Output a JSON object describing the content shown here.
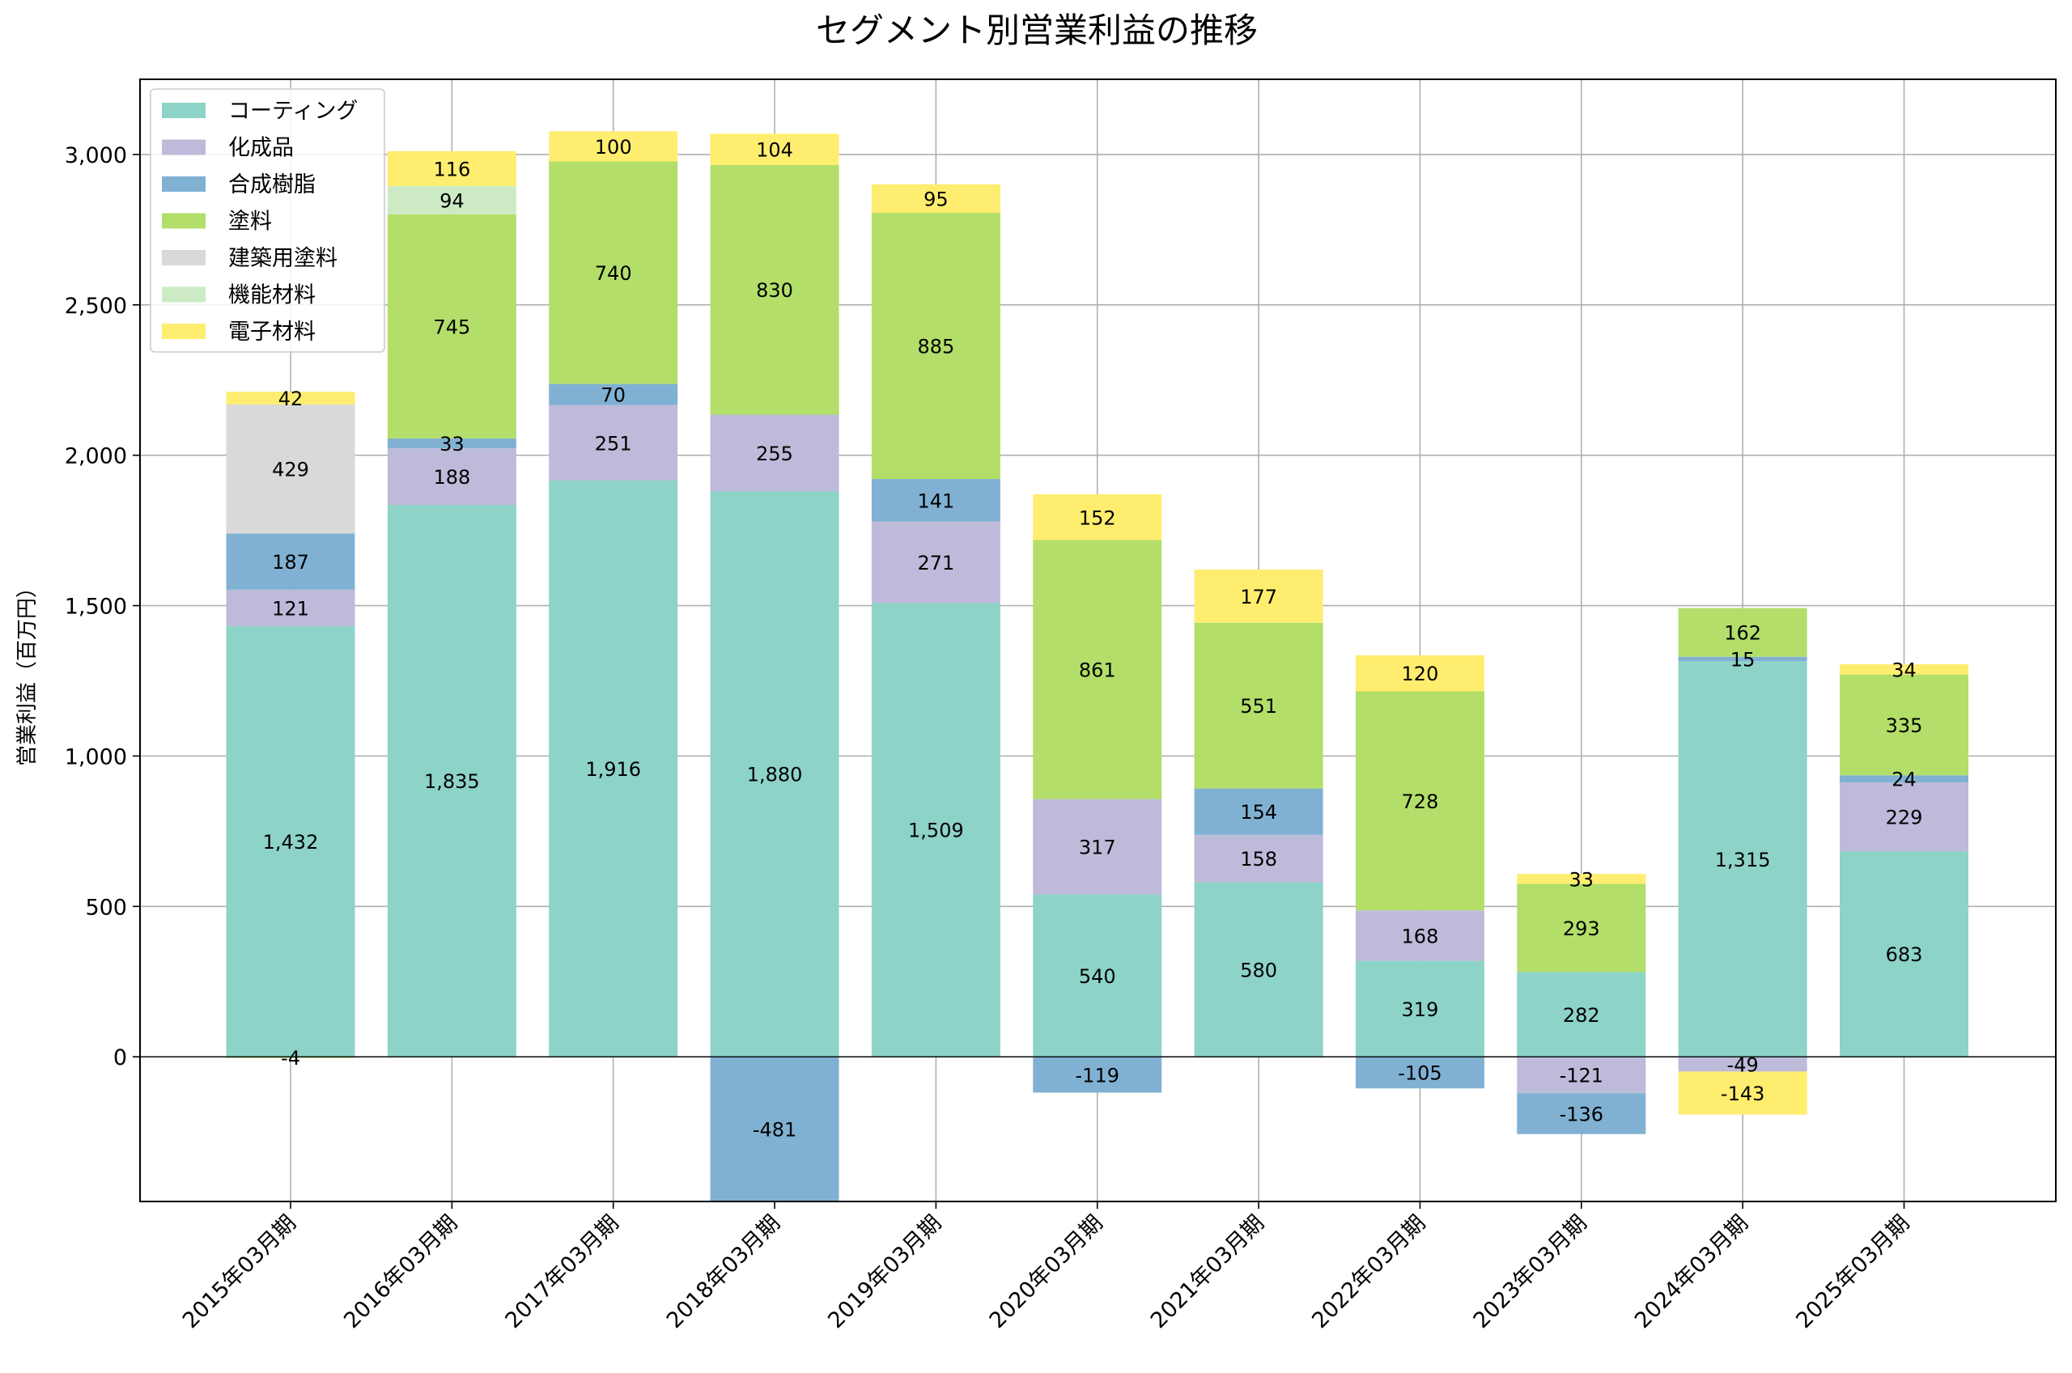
{
  "chart_data": {
    "type": "bar",
    "stacked": true,
    "title": "セグメント別営業利益の推移",
    "xlabel": "",
    "ylabel": "営業利益（百万円）",
    "ylim": [
      -481,
      3250
    ],
    "yticks": [
      0,
      500,
      1000,
      1500,
      2000,
      2500,
      3000
    ],
    "ytick_labels": [
      "0",
      "500",
      "1,000",
      "1,500",
      "2,000",
      "2,500",
      "3,000"
    ],
    "grid": true,
    "legend_position": "top-left",
    "categories": [
      "2015年03月期",
      "2016年03月期",
      "2017年03月期",
      "2018年03月期",
      "2019年03月期",
      "2020年03月期",
      "2021年03月期",
      "2022年03月期",
      "2023年03月期",
      "2024年03月期",
      "2025年03月期"
    ],
    "series": [
      {
        "name": "コーティング",
        "color": "#8dd3c7",
        "values": [
          1432,
          1835,
          1916,
          1880,
          1509,
          540,
          580,
          319,
          282,
          1315,
          683
        ]
      },
      {
        "name": "化成品",
        "color": "#bebada",
        "values": [
          121,
          188,
          251,
          255,
          271,
          317,
          158,
          168,
          -121,
          -49,
          229
        ]
      },
      {
        "name": "合成樹脂",
        "color": "#80b1d3",
        "values": [
          187,
          33,
          70,
          -481,
          141,
          -119,
          154,
          -105,
          -136,
          15,
          24
        ]
      },
      {
        "name": "塗料",
        "color": "#b3de69",
        "values": [
          -4,
          745,
          740,
          830,
          885,
          861,
          551,
          728,
          293,
          162,
          335
        ]
      },
      {
        "name": "建築用塗料",
        "color": "#d9d9d9",
        "values": [
          429,
          null,
          null,
          null,
          null,
          null,
          null,
          null,
          null,
          null,
          null
        ]
      },
      {
        "name": "機能材料",
        "color": "#ccebc5",
        "values": [
          null,
          94,
          null,
          null,
          null,
          null,
          null,
          null,
          null,
          null,
          null
        ]
      },
      {
        "name": "電子材料",
        "color": "#ffed6f",
        "values": [
          42,
          116,
          100,
          104,
          95,
          152,
          177,
          120,
          33,
          -143,
          34
        ]
      }
    ]
  }
}
